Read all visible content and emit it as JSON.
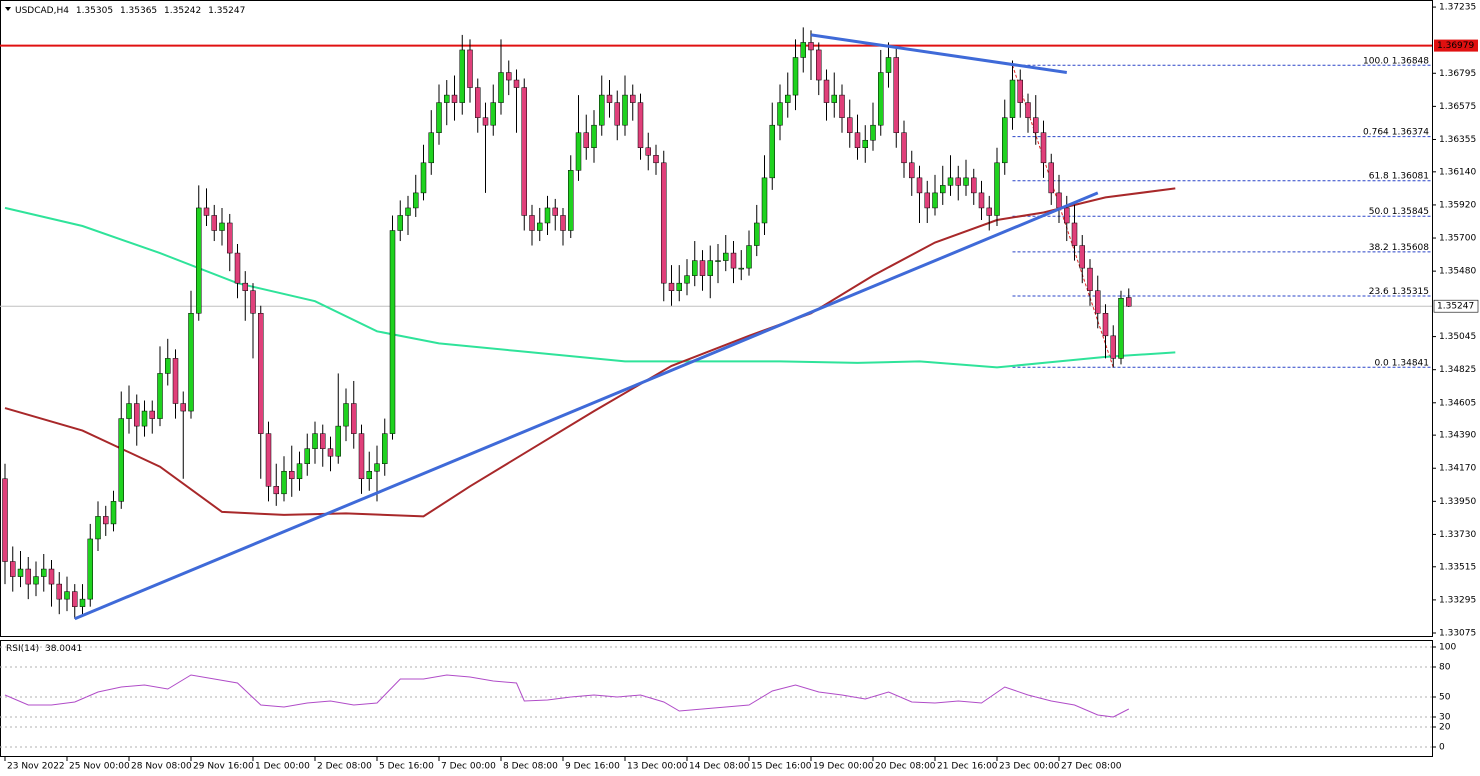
{
  "chart_data": {
    "type": "candlestick",
    "symbol": "USDCAD,H4",
    "colors": {
      "up": "#1fd21f",
      "down": "#e0407a",
      "wick": "#000000"
    },
    "ylim": [
      1.33055,
      1.37282
    ],
    "yticks": [
      1.37235,
      1.36795,
      1.36575,
      1.36355,
      {
        "value": 1.3614,
        "label": "1.36140"
      },
      {
        "value": 1.3592,
        "label": "1.35920"
      },
      {
        "value": 1.357,
        "label": "1.35700"
      },
      {
        "value": 1.3548,
        "label": "1.35480"
      },
      1.35045,
      1.34825,
      1.34605,
      {
        "value": 1.3439,
        "label": "1.34390"
      },
      {
        "value": 1.3417,
        "label": "1.34170"
      },
      {
        "value": 1.3395,
        "label": "1.33950"
      },
      {
        "value": 1.3373,
        "label": "1.33730"
      },
      1.33515,
      1.33295,
      1.33075
    ],
    "x_ticks": [
      0,
      8,
      16,
      24,
      32,
      40,
      48,
      56,
      64,
      72,
      80,
      88,
      96,
      104,
      112,
      120,
      128,
      136
    ],
    "x_labels": [
      "23 Nov 2022",
      "25 Nov 00:00",
      "28 Nov 08:00",
      "29 Nov 16:00",
      "1 Dec 00:00",
      "2 Dec 08:00",
      "5 Dec 16:00",
      "7 Dec 00:00",
      "8 Dec 08:00",
      "9 Dec 16:00",
      "13 Dec 00:00",
      "14 Dec 08:00",
      "15 Dec 16:00",
      "19 Dec 00:00",
      "20 Dec 08:00",
      "21 Dec 16:00",
      "23 Dec 00:00",
      "27 Dec 08:00"
    ],
    "candles": [
      [
        1.341,
        1.342,
        1.334,
        1.3355
      ],
      [
        1.3355,
        1.3365,
        1.3335,
        1.3345
      ],
      [
        1.3345,
        1.3362,
        1.3338,
        1.335
      ],
      [
        1.335,
        1.3358,
        1.333,
        1.334
      ],
      [
        1.334,
        1.3355,
        1.3332,
        1.3345
      ],
      [
        1.3345,
        1.336,
        1.3335,
        1.335
      ],
      [
        1.335,
        1.3356,
        1.3325,
        1.334
      ],
      [
        1.334,
        1.3348,
        1.332,
        1.333
      ],
      [
        1.333,
        1.3345,
        1.3322,
        1.3335
      ],
      [
        1.3335,
        1.334,
        1.3317,
        1.3325
      ],
      [
        1.3325,
        1.334,
        1.332,
        1.333
      ],
      [
        1.333,
        1.338,
        1.3325,
        1.337
      ],
      [
        1.337,
        1.3395,
        1.3362,
        1.3385
      ],
      [
        1.3385,
        1.3392,
        1.3372,
        1.338
      ],
      [
        1.338,
        1.3402,
        1.3375,
        1.3395
      ],
      [
        1.3395,
        1.3468,
        1.339,
        1.345
      ],
      [
        1.345,
        1.3472,
        1.344,
        1.346
      ],
      [
        1.346,
        1.3466,
        1.3432,
        1.3445
      ],
      [
        1.3445,
        1.3462,
        1.3438,
        1.3455
      ],
      [
        1.3455,
        1.3462,
        1.344,
        1.345
      ],
      [
        1.345,
        1.3498,
        1.3445,
        1.348
      ],
      [
        1.348,
        1.3503,
        1.3472,
        1.349
      ],
      [
        1.349,
        1.3496,
        1.345,
        1.346
      ],
      [
        1.346,
        1.3468,
        1.341,
        1.3455
      ],
      [
        1.3455,
        1.3535,
        1.345,
        1.352
      ],
      [
        1.352,
        1.3605,
        1.3515,
        1.359
      ],
      [
        1.359,
        1.3603,
        1.3578,
        1.3585
      ],
      [
        1.3585,
        1.3592,
        1.3568,
        1.3575
      ],
      [
        1.3575,
        1.359,
        1.3565,
        1.358
      ],
      [
        1.358,
        1.3586,
        1.3548,
        1.356
      ],
      [
        1.356,
        1.3566,
        1.353,
        1.354
      ],
      [
        1.354,
        1.3548,
        1.3515,
        1.3535
      ],
      [
        1.3535,
        1.354,
        1.349,
        1.352
      ],
      [
        1.352,
        1.3525,
        1.341,
        1.344
      ],
      [
        1.344,
        1.3448,
        1.3395,
        1.3405
      ],
      [
        1.3405,
        1.342,
        1.3392,
        1.34
      ],
      [
        1.34,
        1.3425,
        1.3395,
        1.3415
      ],
      [
        1.3415,
        1.3432,
        1.3398,
        1.341
      ],
      [
        1.341,
        1.3428,
        1.3402,
        1.342
      ],
      [
        1.342,
        1.344,
        1.3412,
        1.343
      ],
      [
        1.343,
        1.3448,
        1.342,
        1.344
      ],
      [
        1.344,
        1.3446,
        1.3418,
        1.343
      ],
      [
        1.343,
        1.3438,
        1.3415,
        1.3425
      ],
      [
        1.3425,
        1.348,
        1.342,
        1.3445
      ],
      [
        1.3445,
        1.347,
        1.3435,
        1.346
      ],
      [
        1.346,
        1.3475,
        1.343,
        1.344
      ],
      [
        1.344,
        1.3446,
        1.34,
        1.341
      ],
      [
        1.341,
        1.3428,
        1.3402,
        1.3415
      ],
      [
        1.3415,
        1.3432,
        1.3395,
        1.342
      ],
      [
        1.342,
        1.345,
        1.3412,
        1.344
      ],
      [
        1.344,
        1.3585,
        1.3436,
        1.3575
      ],
      [
        1.3575,
        1.3595,
        1.3568,
        1.3585
      ],
      [
        1.3585,
        1.3598,
        1.3572,
        1.359
      ],
      [
        1.359,
        1.3612,
        1.3584,
        1.36
      ],
      [
        1.36,
        1.3632,
        1.3595,
        1.362
      ],
      [
        1.362,
        1.3655,
        1.3612,
        1.364
      ],
      [
        1.364,
        1.3672,
        1.3632,
        1.366
      ],
      [
        1.366,
        1.3675,
        1.3645,
        1.3665
      ],
      [
        1.3665,
        1.3678,
        1.3648,
        1.366
      ],
      [
        1.366,
        1.3705,
        1.3652,
        1.3695
      ],
      [
        1.3695,
        1.3702,
        1.366,
        1.367
      ],
      [
        1.367,
        1.3676,
        1.364,
        1.365
      ],
      [
        1.365,
        1.366,
        1.36,
        1.3645
      ],
      [
        1.3645,
        1.3672,
        1.3638,
        1.366
      ],
      [
        1.366,
        1.3702,
        1.3652,
        1.368
      ],
      [
        1.368,
        1.3688,
        1.3665,
        1.3675
      ],
      [
        1.3675,
        1.3682,
        1.364,
        1.367
      ],
      [
        1.367,
        1.3676,
        1.3575,
        1.3585
      ],
      [
        1.3585,
        1.3592,
        1.3565,
        1.3575
      ],
      [
        1.3575,
        1.359,
        1.3568,
        1.358
      ],
      [
        1.358,
        1.3598,
        1.3572,
        1.359
      ],
      [
        1.359,
        1.3596,
        1.3575,
        1.3585
      ],
      [
        1.3585,
        1.359,
        1.3565,
        1.3575
      ],
      [
        1.3575,
        1.3625,
        1.357,
        1.3615
      ],
      [
        1.3615,
        1.3665,
        1.3608,
        1.364
      ],
      [
        1.364,
        1.3652,
        1.3622,
        1.363
      ],
      [
        1.363,
        1.3655,
        1.362,
        1.3645
      ],
      [
        1.3645,
        1.3678,
        1.3638,
        1.3665
      ],
      [
        1.3665,
        1.3675,
        1.365,
        1.366
      ],
      [
        1.366,
        1.3668,
        1.3635,
        1.3645
      ],
      [
        1.3645,
        1.3678,
        1.3638,
        1.3665
      ],
      [
        1.3665,
        1.3672,
        1.3648,
        1.366
      ],
      [
        1.366,
        1.3666,
        1.3622,
        1.363
      ],
      [
        1.363,
        1.364,
        1.3615,
        1.3625
      ],
      [
        1.3625,
        1.3632,
        1.3612,
        1.362
      ],
      [
        1.362,
        1.3628,
        1.3528,
        1.354
      ],
      [
        1.354,
        1.3552,
        1.3525,
        1.3535
      ],
      [
        1.3535,
        1.3552,
        1.3528,
        1.354
      ],
      [
        1.354,
        1.3556,
        1.3532,
        1.3545
      ],
      [
        1.3545,
        1.3568,
        1.3538,
        1.3555
      ],
      [
        1.3555,
        1.3562,
        1.3535,
        1.3545
      ],
      [
        1.3545,
        1.3565,
        1.353,
        1.3555
      ],
      [
        1.3555,
        1.3566,
        1.354,
        1.3555
      ],
      [
        1.3555,
        1.3572,
        1.3548,
        1.356
      ],
      [
        1.356,
        1.3568,
        1.354,
        1.355
      ],
      [
        1.355,
        1.3562,
        1.3542,
        1.355
      ],
      [
        1.355,
        1.3575,
        1.3545,
        1.3565
      ],
      [
        1.3565,
        1.3592,
        1.3558,
        1.358
      ],
      [
        1.358,
        1.3625,
        1.3572,
        1.361
      ],
      [
        1.361,
        1.366,
        1.3602,
        1.3645
      ],
      [
        1.3645,
        1.3672,
        1.3635,
        1.366
      ],
      [
        1.366,
        1.368,
        1.365,
        1.3665
      ],
      [
        1.3665,
        1.3702,
        1.3655,
        1.369
      ],
      [
        1.369,
        1.371,
        1.368,
        1.37
      ],
      [
        1.37,
        1.3708,
        1.3675,
        1.3695
      ],
      [
        1.3695,
        1.37,
        1.3665,
        1.3675
      ],
      [
        1.3675,
        1.3682,
        1.3648,
        1.366
      ],
      [
        1.366,
        1.368,
        1.365,
        1.3665
      ],
      [
        1.3665,
        1.3672,
        1.364,
        1.365
      ],
      [
        1.365,
        1.3662,
        1.363,
        1.364
      ],
      [
        1.364,
        1.3652,
        1.3622,
        1.363
      ],
      [
        1.363,
        1.3645,
        1.362,
        1.3635
      ],
      [
        1.3635,
        1.366,
        1.3628,
        1.3645
      ],
      [
        1.3645,
        1.3695,
        1.3638,
        1.368
      ],
      [
        1.368,
        1.37,
        1.367,
        1.369
      ],
      [
        1.369,
        1.3696,
        1.363,
        1.364
      ],
      [
        1.364,
        1.3648,
        1.361,
        1.362
      ],
      [
        1.362,
        1.3628,
        1.3598,
        1.361
      ],
      [
        1.361,
        1.3618,
        1.358,
        1.36
      ],
      [
        1.36,
        1.3608,
        1.358,
        1.359
      ],
      [
        1.359,
        1.3612,
        1.3585,
        1.36
      ],
      [
        1.36,
        1.3618,
        1.3592,
        1.3605
      ],
      [
        1.3605,
        1.3625,
        1.3598,
        1.361
      ],
      [
        1.361,
        1.3618,
        1.3595,
        1.3605
      ],
      [
        1.3605,
        1.3622,
        1.3598,
        1.361
      ],
      [
        1.361,
        1.3616,
        1.3592,
        1.36
      ],
      [
        1.36,
        1.3608,
        1.3582,
        1.359
      ],
      [
        1.359,
        1.3598,
        1.3575,
        1.3585
      ],
      [
        1.3585,
        1.363,
        1.3578,
        1.362
      ],
      [
        1.362,
        1.3662,
        1.3612,
        1.365
      ],
      [
        1.365,
        1.3688,
        1.3642,
        1.3675
      ],
      [
        1.3675,
        1.3682,
        1.365,
        1.366
      ],
      [
        1.366,
        1.3666,
        1.364,
        1.365
      ],
      [
        1.365,
        1.3665,
        1.3632,
        1.364
      ],
      [
        1.364,
        1.3648,
        1.361,
        1.362
      ],
      [
        1.362,
        1.3626,
        1.3592,
        1.36
      ],
      [
        1.36,
        1.3612,
        1.358,
        1.359
      ],
      [
        1.359,
        1.3598,
        1.3568,
        1.358
      ],
      [
        1.358,
        1.3592,
        1.3555,
        1.3565
      ],
      [
        1.3565,
        1.3572,
        1.354,
        1.355
      ],
      [
        1.355,
        1.3556,
        1.3525,
        1.3535
      ],
      [
        1.3535,
        1.3545,
        1.351,
        1.352
      ],
      [
        1.352,
        1.3526,
        1.349,
        1.3505
      ],
      [
        1.3505,
        1.3512,
        1.3484,
        1.349
      ],
      [
        1.349,
        1.3535,
        1.3486,
        1.353
      ],
      [
        1.35305,
        1.35365,
        1.35242,
        1.35247
      ]
    ],
    "moving_averages": [
      {
        "color": "#2fe39a",
        "x": [
          0,
          10,
          20,
          30,
          40,
          48,
          56,
          66,
          80,
          90,
          100,
          110,
          118,
          128,
          134,
          142,
          151
        ],
        "values": [
          1.359,
          1.3578,
          1.356,
          1.354,
          1.3528,
          1.3508,
          1.35,
          1.3495,
          1.3488,
          1.3488,
          1.3488,
          1.3487,
          1.3488,
          1.3484,
          1.3487,
          1.3491,
          1.3494
        ]
      },
      {
        "color": "#a8282a",
        "x": [
          0,
          10,
          20,
          28,
          36,
          44,
          54,
          60,
          68,
          76,
          86,
          96,
          104,
          112,
          120,
          128,
          134,
          142,
          151
        ],
        "values": [
          1.3457,
          1.3442,
          1.3418,
          1.3388,
          1.3386,
          1.3387,
          1.3385,
          1.3405,
          1.343,
          1.3455,
          1.3485,
          1.3505,
          1.352,
          1.3545,
          1.3567,
          1.3582,
          1.3587,
          1.3597,
          1.3603
        ]
      }
    ],
    "trendlines": [
      {
        "color": "#3f6ad8",
        "x": [
          9,
          141
        ],
        "y": [
          1.3317,
          1.36
        ]
      },
      {
        "color": "#3f6ad8",
        "x": [
          104,
          137
        ],
        "y": [
          1.3705,
          1.368
        ]
      }
    ],
    "hline": {
      "value": 1.36979,
      "color": "#e01010"
    },
    "fib": {
      "anchors": [
        130,
        143
      ],
      "color": "#2a44c8",
      "levels": [
        {
          "level": "100.0",
          "price": 1.36848
        },
        {
          "level": "0.764",
          "price": 1.36374
        },
        {
          "level": "61.8",
          "price": 1.36081
        },
        {
          "level": "50.0",
          "price": 1.35845
        },
        {
          "level": "38.2",
          "price": 1.35608
        },
        {
          "level": "23.6",
          "price": 1.35315
        },
        {
          "level": "0.0",
          "price": 1.34841
        }
      ]
    },
    "rsi": {
      "title": "RSI(14)",
      "current": 38.0041,
      "color": "#b04cc8",
      "ylim": [
        -10,
        107
      ],
      "yticks": [
        100,
        80,
        50,
        30,
        20,
        0
      ],
      "x": [
        0,
        3,
        6,
        9,
        12,
        15,
        18,
        21,
        24,
        27,
        30,
        33,
        36,
        39,
        42,
        45,
        48,
        51,
        54,
        57,
        60,
        63,
        66,
        67,
        70,
        73,
        76,
        79,
        82,
        85,
        87,
        90,
        93,
        96,
        99,
        102,
        105,
        108,
        111,
        114,
        117,
        120,
        123,
        126,
        129,
        132,
        135,
        138,
        141,
        143,
        145
      ],
      "values": [
        52,
        42,
        42,
        45,
        55,
        60,
        62,
        58,
        72,
        68,
        64,
        42,
        40,
        44,
        46,
        42,
        44,
        68,
        68,
        72,
        70,
        66,
        64,
        46,
        47,
        50,
        52,
        50,
        52,
        45,
        36,
        38,
        40,
        42,
        56,
        62,
        55,
        52,
        48,
        55,
        45,
        44,
        46,
        44,
        60,
        52,
        46,
        42,
        32,
        30,
        38
      ]
    }
  }
}
